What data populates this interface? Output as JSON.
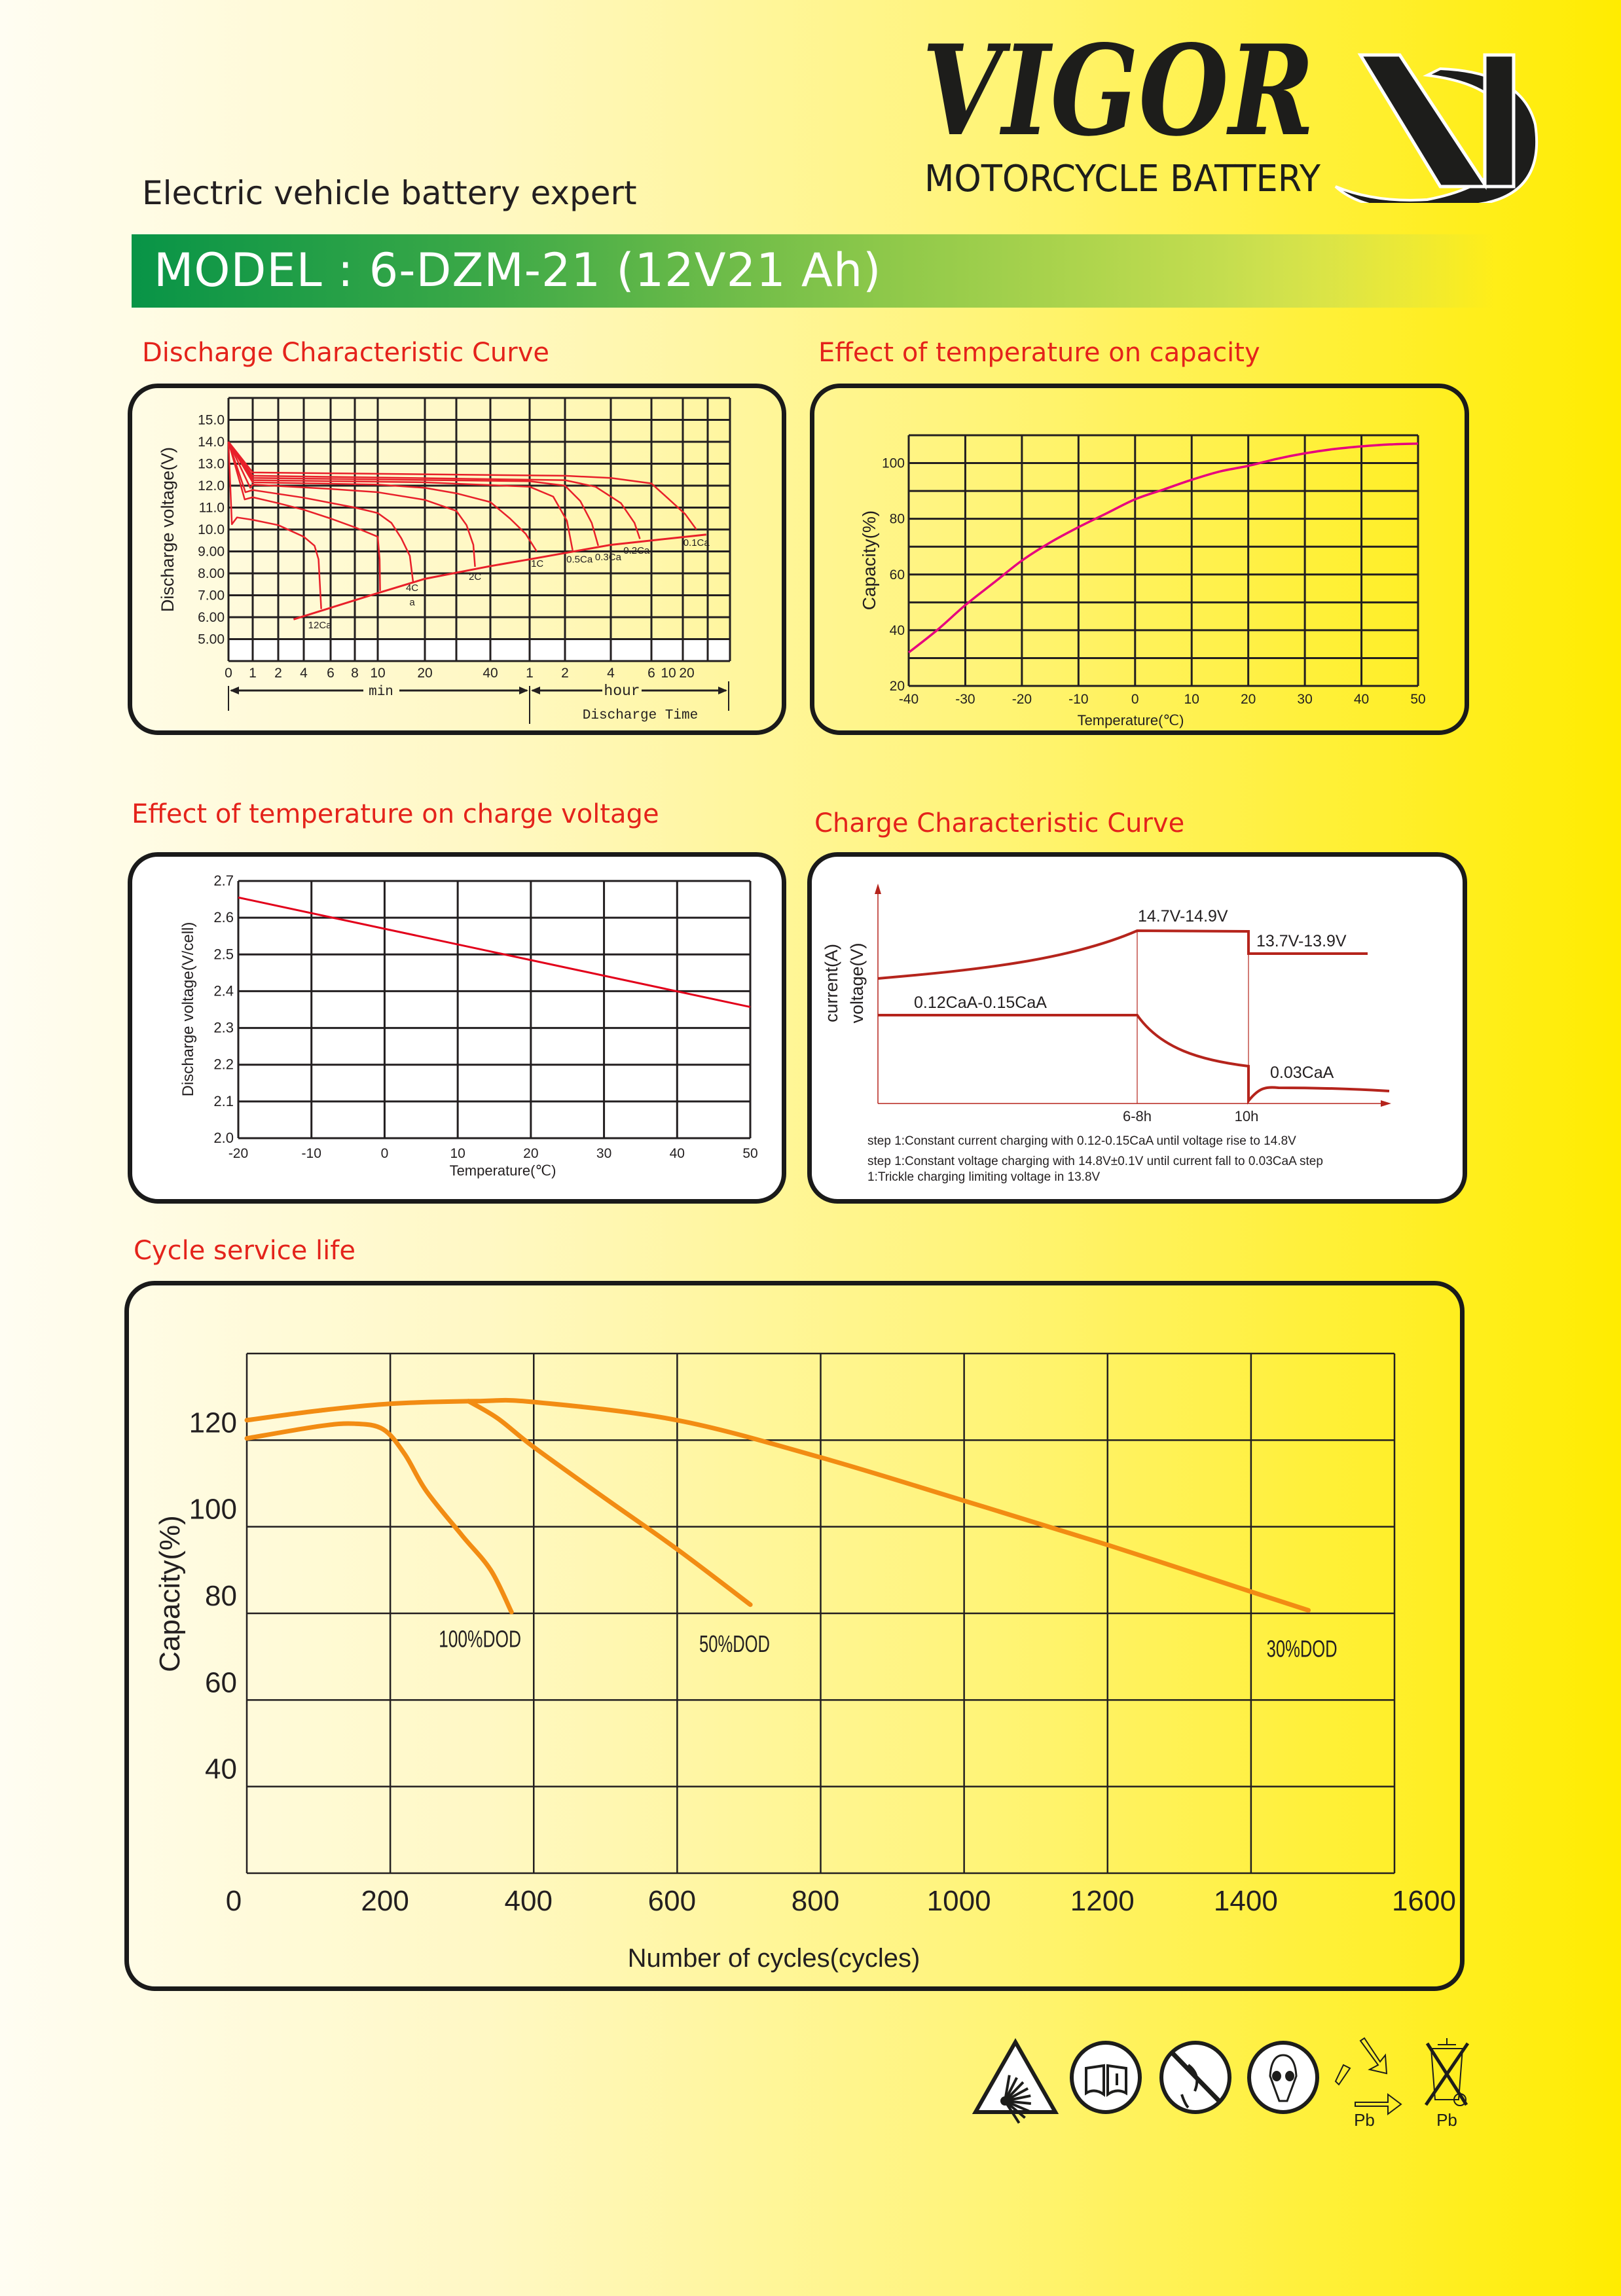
{
  "header": {
    "tagline": "Electric vehicle battery expert",
    "brand": {
      "logo_text": "VIGOR",
      "subtitle": "MOTORCYCLE BATTERY",
      "mark": "VP"
    }
  },
  "model_banner": "MODEL : 6-DZM-21 (12V21 Ah)",
  "sections": {
    "discharge": "Discharge Characteristic Curve",
    "temp_capacity": "Effect of temperature  on capacity",
    "temp_voltage": "Effect of temperature on charge voltage",
    "charge": "Charge Characteristic Curve",
    "cycle": "Cycle service life"
  },
  "colors": {
    "title_red": "#e4231b",
    "discharge_red": "#e8202a",
    "capacity_magenta": "#e6007e",
    "voltage_red": "#e2001a",
    "charge_red": "#b5241c",
    "cycle_orange": "#f28c13",
    "banner_green": "#089447"
  },
  "chart_data": [
    {
      "id": "discharge",
      "type": "line",
      "title": "Discharge Characteristic Curve",
      "ylabel": "Discharge voltage(V)",
      "xlabel": "Discharge Time",
      "x_unit_labels": {
        "min": "min",
        "hour": "hour"
      },
      "ylim": [
        4,
        16
      ],
      "yticks": [
        {
          "v": 15,
          "label": "15.0"
        },
        {
          "v": 14,
          "label": "14.0"
        },
        {
          "v": 13,
          "label": "13.0"
        },
        {
          "v": 12,
          "label": "12.0"
        },
        {
          "v": 11,
          "label": "11.0"
        },
        {
          "v": 10,
          "label": "10.0"
        },
        {
          "v": 9,
          "label": "9.00"
        },
        {
          "v": 8,
          "label": "8.00"
        },
        {
          "v": 7,
          "label": "7.00"
        },
        {
          "v": 6,
          "label": "6.00"
        },
        {
          "v": 5,
          "label": "5.00"
        }
      ],
      "xticks_minutes": [
        {
          "m": 0,
          "label": "0"
        },
        {
          "m": 1,
          "label": "1"
        },
        {
          "m": 2,
          "label": "2"
        },
        {
          "m": 4,
          "label": "4"
        },
        {
          "m": 6,
          "label": "6"
        },
        {
          "m": 8,
          "label": "8"
        },
        {
          "m": 10,
          "label": "10"
        },
        {
          "m": 20,
          "label": "20"
        },
        {
          "m": 40,
          "label": "40"
        },
        {
          "m": 60,
          "label": "1"
        },
        {
          "m": 120,
          "label": "2"
        },
        {
          "m": 240,
          "label": "4"
        },
        {
          "m": 360,
          "label": "6"
        },
        {
          "m": 600,
          "label": "10"
        },
        {
          "m": 1200,
          "label": "20"
        }
      ],
      "series": [
        {
          "name": "12Ca",
          "label": [
            "12Ca"
          ],
          "label_at": [
            5.2,
            5.5
          ],
          "points": [
            [
              0,
              14
            ],
            [
              0.14,
              10.24
            ],
            [
              0.35,
              10.55
            ],
            [
              1,
              10.44
            ],
            [
              2,
              10.2
            ],
            [
              4,
              9.67
            ],
            [
              4.8,
              9.26
            ],
            [
              5.1,
              8.64
            ],
            [
              5.3,
              6.37
            ]
          ]
        },
        {
          "name": "8C",
          "label": [],
          "points": [
            [
              0,
              14
            ],
            [
              0.67,
              11.37
            ],
            [
              1,
              11.47
            ],
            [
              2,
              11.2
            ],
            [
              4,
              10.9
            ],
            [
              6,
              10.5
            ],
            [
              8,
              10.1
            ],
            [
              10,
              9.67
            ],
            [
              10.4,
              8.64
            ],
            [
              10.5,
              7.2
            ]
          ]
        },
        {
          "name": "4C",
          "label": [
            "4C",
            "a"
          ],
          "label_at": [
            17.3,
            7.2
          ],
          "points": [
            [
              0,
              14
            ],
            [
              0.7,
              11.7
            ],
            [
              1,
              11.8
            ],
            [
              4,
              11.45
            ],
            [
              8,
              11.0
            ],
            [
              10,
              10.75
            ],
            [
              12.9,
              10.3
            ],
            [
              15,
              9.6
            ],
            [
              16.8,
              8.8
            ],
            [
              17.5,
              7.6
            ]
          ]
        },
        {
          "name": "2C",
          "label": [
            "2C"
          ],
          "label_at": [
            35.5,
            7.7
          ],
          "points": [
            [
              0,
              14
            ],
            [
              0.9,
              11.9
            ],
            [
              1,
              12.05
            ],
            [
              6,
              11.85
            ],
            [
              10,
              11.7
            ],
            [
              20,
              11.35
            ],
            [
              30,
              10.85
            ],
            [
              33,
              10.2
            ],
            [
              35,
              9.3
            ],
            [
              35.5,
              8.3
            ]
          ]
        },
        {
          "name": "1C",
          "label": [
            "1C"
          ],
          "label_at": [
            73,
            8.3
          ],
          "points": [
            [
              0,
              14
            ],
            [
              1,
              12.15
            ],
            [
              10,
              12.05
            ],
            [
              20,
              11.9
            ],
            [
              30,
              11.65
            ],
            [
              40,
              11.25
            ],
            [
              50,
              10.5
            ],
            [
              58,
              9.8
            ],
            [
              72,
              9.0
            ]
          ]
        },
        {
          "name": "0.5Ca",
          "label": [
            "0.5Ca"
          ],
          "label_at": [
            158,
            8.5
          ],
          "points": [
            [
              0,
              14
            ],
            [
              1,
              12.25
            ],
            [
              20,
              12.15
            ],
            [
              60,
              11.95
            ],
            [
              100,
              11.5
            ],
            [
              125,
              10.4
            ],
            [
              140,
              9.05
            ]
          ]
        },
        {
          "name": "0.3Ca",
          "label": [
            "0.3Ca"
          ],
          "label_at": [
            233,
            8.6
          ],
          "points": [
            [
              0,
              14
            ],
            [
              1,
              12.35
            ],
            [
              60,
              12.2
            ],
            [
              120,
              12.0
            ],
            [
              160,
              11.3
            ],
            [
              190,
              10.3
            ],
            [
              207,
              9.26
            ]
          ]
        },
        {
          "name": "0.2Ca",
          "label": [
            "0.2Ca"
          ],
          "label_at": [
            316,
            8.9
          ],
          "points": [
            [
              0,
              14
            ],
            [
              1,
              12.45
            ],
            [
              120,
              12.25
            ],
            [
              200,
              11.95
            ],
            [
              270,
              11.2
            ],
            [
              310,
              10.3
            ],
            [
              326,
              9.57
            ]
          ]
        },
        {
          "name": "0.1Ca",
          "label": [
            "0.1Ca"
          ],
          "label_at": [
            1338,
            9.25
          ],
          "points": [
            [
              0,
              14
            ],
            [
              1,
              12.6
            ],
            [
              120,
              12.45
            ],
            [
              240,
              12.35
            ],
            [
              360,
              12.1
            ],
            [
              600,
              11.4
            ],
            [
              1150,
              10.7
            ],
            [
              1338,
              10.0
            ]
          ]
        }
      ],
      "end_voltage_line": [
        [
          3.2,
          5.9
        ],
        [
          10,
          7.1
        ],
        [
          20,
          7.75
        ],
        [
          40,
          8.33
        ],
        [
          60,
          8.64
        ],
        [
          240,
          9.3
        ],
        [
          1480,
          9.77
        ]
      ]
    },
    {
      "id": "temp_capacity",
      "type": "line",
      "title": "Effect of temperature  on capacity",
      "ylabel": "Capacity(%)",
      "xlabel": "Temperature(℃)",
      "xlim": [
        -40,
        50
      ],
      "ylim": [
        20,
        110
      ],
      "xticks": [
        "-40",
        "-30",
        "-20",
        "-10",
        "0",
        "10",
        "20",
        "30",
        "40",
        "50"
      ],
      "yticks": [
        "20",
        "40",
        "60",
        "80",
        "100"
      ],
      "x": [
        -40,
        -35,
        -30,
        -25,
        -20,
        -15,
        -10,
        -5,
        0,
        5,
        10,
        15,
        20,
        25,
        30,
        35,
        40,
        45,
        50
      ],
      "values": [
        32,
        40,
        49,
        57,
        65,
        71.5,
        77,
        82,
        87,
        90.5,
        94,
        97,
        99,
        101.5,
        103.5,
        105,
        106,
        106.7,
        107
      ]
    },
    {
      "id": "temp_voltage",
      "type": "line",
      "title": "Effect of temperature on charge voltage",
      "ylabel": "Discharge voltage(V/cell)",
      "xlabel": "Temperature(℃)",
      "xlim": [
        -20,
        50
      ],
      "ylim": [
        2.0,
        2.7
      ],
      "xticks": [
        "-20",
        "-10",
        "0",
        "10",
        "20",
        "30",
        "40",
        "50"
      ],
      "yticks": [
        "2.0",
        "2.1",
        "2.2",
        "2.3",
        "2.4",
        "2.5",
        "2.6",
        "2.7"
      ],
      "x": [
        -20,
        50
      ],
      "values": [
        2.655,
        2.357
      ]
    },
    {
      "id": "charge",
      "type": "line",
      "title": "Charge Characteristic Curve",
      "ylabel_lines": [
        "current(A)",
        "voltage(V)"
      ],
      "xticks": [
        "6-8h",
        "10h"
      ],
      "annotations": {
        "cv_voltage": "14.7V-14.9V",
        "float_voltage": "13.7V-13.9V",
        "cc_current": "0.12CaA-0.15CaA",
        "float_current": "0.03CaA"
      },
      "notes": [
        "step 1:Constant current charging with 0.12-0.15CaA until voltage rise to 14.8V",
        "step 1:Constant voltage charging with 14.8V±0.1V until current fall to 0.03CaA step",
        " 1:Trickle charging limiting voltage in 13.8V"
      ]
    },
    {
      "id": "cycle_life",
      "type": "line",
      "title": "Cycle service life",
      "ylabel": "Capacity(%)",
      "xlabel": "Number of cycles(cycles)",
      "xlim": [
        0,
        1600
      ],
      "ylim": [
        20,
        140
      ],
      "xticks": [
        "0",
        "200",
        "400",
        "600",
        "800",
        "1000",
        "1200",
        "1400",
        "1600"
      ],
      "yticks": [
        {
          "v": 120,
          "label": "120"
        },
        {
          "v": 100,
          "label": "100"
        },
        {
          "v": 80,
          "label": "80"
        },
        {
          "v": 60,
          "label": "60"
        },
        {
          "v": 40,
          "label": "40"
        }
      ],
      "series": [
        {
          "name": "100%DOD",
          "label_at": [
            325,
            74.3
          ],
          "points": [
            [
              0,
              120.4
            ],
            [
              100,
              123.2
            ],
            [
              150,
              123.8
            ],
            [
              190,
              122.5
            ],
            [
              220,
              116.8
            ],
            [
              250,
              108.3
            ],
            [
              300,
              98
            ],
            [
              340,
              90
            ],
            [
              369,
              80.3
            ]
          ]
        },
        {
          "name": "50%DOD",
          "label_at": [
            680,
            73.2
          ],
          "points": [
            [
              309,
              129
            ],
            [
              350,
              125
            ],
            [
              400,
              118.4
            ],
            [
              500,
              106.5
            ],
            [
              600,
              94.8
            ],
            [
              702,
              82
            ]
          ]
        },
        {
          "name": "30%DOD",
          "label_at": [
            1471,
            72.1
          ],
          "points": [
            [
              0,
              124.6
            ],
            [
              100,
              126.8
            ],
            [
              200,
              128.4
            ],
            [
              320,
              129
            ],
            [
              400,
              128.8
            ],
            [
              600,
              124.6
            ],
            [
              800,
              116
            ],
            [
              1000,
              106
            ],
            [
              1200,
              95.8
            ],
            [
              1400,
              85
            ],
            [
              1480,
              80.7
            ]
          ]
        }
      ]
    }
  ],
  "safety_icons": [
    {
      "icon": "explosion-warning",
      "label": ""
    },
    {
      "icon": "read-manual",
      "label": ""
    },
    {
      "icon": "no-smoking-flame",
      "label": ""
    },
    {
      "icon": "eye-protection",
      "label": ""
    },
    {
      "icon": "recycle",
      "label": "Pb"
    },
    {
      "icon": "crossed-bin",
      "label": "Pb"
    }
  ]
}
